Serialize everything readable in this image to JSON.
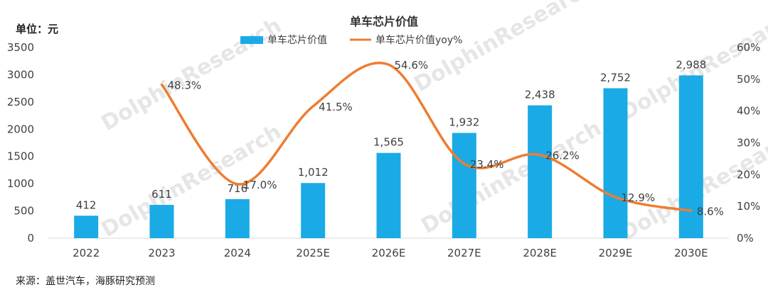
{
  "unit_label": "单位：元",
  "source": "来源：盖世汽车，海豚研究预测",
  "watermark": "DolphinResearch",
  "colors": {
    "bar": "#1aabe6",
    "line": "#ee7d31"
  },
  "chart_data": {
    "type": "bar",
    "title": "单车芯片价值",
    "categories": [
      "2022",
      "2023",
      "2024",
      "2025E",
      "2026E",
      "2027E",
      "2028E",
      "2029E",
      "2030E"
    ],
    "series": [
      {
        "name": "单车芯片价值",
        "type": "bar",
        "axis": "left",
        "values": [
          412,
          611,
          716,
          1012,
          1565,
          1932,
          2438,
          2752,
          2988
        ],
        "labels": [
          "412",
          "611",
          "716",
          "1,012",
          "1,565",
          "1,932",
          "2,438",
          "2,752",
          "2,988"
        ]
      },
      {
        "name": "单车芯片价值yoy%",
        "type": "line",
        "axis": "right",
        "values": [
          null,
          48.3,
          17.0,
          41.5,
          54.6,
          23.4,
          26.2,
          12.9,
          8.6
        ],
        "labels": [
          "",
          "48.3%",
          "17.0%",
          "41.5%",
          "54.6%",
          "23.4%",
          "26.2%",
          "12.9%",
          "8.6%"
        ]
      }
    ],
    "y_left": {
      "min": 0,
      "max": 3500,
      "ticks": [
        "0",
        "500",
        "1000",
        "1500",
        "2000",
        "2500",
        "3000",
        "3500"
      ]
    },
    "y_right": {
      "min": 0,
      "max": 60,
      "ticks": [
        "0%",
        "10%",
        "20%",
        "30%",
        "40%",
        "50%",
        "60%"
      ]
    },
    "legend_position": "top-center",
    "grid": false
  }
}
